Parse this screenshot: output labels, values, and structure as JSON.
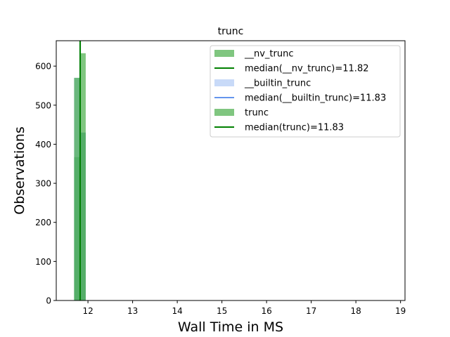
{
  "chart_data": {
    "type": "bar",
    "title": "trunc",
    "xlabel": "Wall Time in MS",
    "ylabel": "Observations",
    "xlim": [
      11.29,
      19.1
    ],
    "ylim": [
      0,
      665
    ],
    "xticks": [
      12,
      13,
      14,
      15,
      16,
      17,
      18,
      19
    ],
    "yticks": [
      0,
      100,
      200,
      300,
      400,
      500,
      600
    ],
    "grid": false,
    "legend_position": "top-right",
    "series": [
      {
        "name": "__nv_trunc",
        "kind": "hist",
        "color": "#2ca02c",
        "alpha": 0.6,
        "bins": [
          {
            "x0": 11.69,
            "x1": 11.82,
            "count": 367
          },
          {
            "x0": 11.82,
            "x1": 11.95,
            "count": 633
          }
        ]
      },
      {
        "name": "median(__nv_trunc)=11.82",
        "kind": "vline",
        "color": "#008000",
        "x": 11.82
      },
      {
        "name": "__builtin_trunc",
        "kind": "hist",
        "color": "#a4c2f4",
        "alpha": 0.6,
        "bins": [
          {
            "x0": 11.69,
            "x1": 11.82,
            "count": 570
          },
          {
            "x0": 11.82,
            "x1": 11.95,
            "count": 430
          }
        ]
      },
      {
        "name": "median(__builtin_trunc)=11.83",
        "kind": "vline",
        "color": "#6495ed",
        "x": 11.83
      },
      {
        "name": "trunc",
        "kind": "hist",
        "color": "#2ca02c",
        "alpha": 0.6,
        "bins": [
          {
            "x0": 11.69,
            "x1": 11.82,
            "count": 570
          },
          {
            "x0": 11.82,
            "x1": 11.95,
            "count": 430
          }
        ]
      },
      {
        "name": "median(trunc)=11.83",
        "kind": "vline",
        "color": "#008000",
        "x": 11.83
      }
    ]
  }
}
